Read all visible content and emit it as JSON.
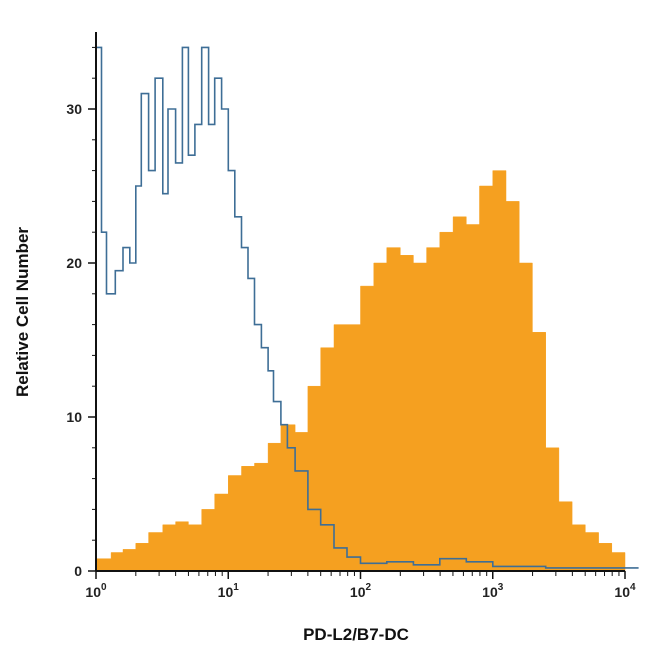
{
  "chart_data": {
    "type": "histogram",
    "title": "",
    "xlabel": "PD-L2/B7-DC",
    "ylabel": "Relative Cell Number",
    "x_scale": "log",
    "xlim": [
      1,
      10000
    ],
    "ylim": [
      0,
      35
    ],
    "x_ticks": [
      {
        "base": "10",
        "exp": "0",
        "value": 1
      },
      {
        "base": "10",
        "exp": "1",
        "value": 10
      },
      {
        "base": "10",
        "exp": "2",
        "value": 100
      },
      {
        "base": "10",
        "exp": "3",
        "value": 1000
      },
      {
        "base": "10",
        "exp": "4",
        "value": 10000
      }
    ],
    "y_ticks": [
      0,
      10,
      20,
      30
    ],
    "grid": false,
    "legend": "none",
    "series": [
      {
        "style": "filled",
        "color": "#f5a020",
        "x": [
          1.0,
          1.3,
          1.6,
          2.0,
          2.5,
          3.2,
          4.0,
          5.0,
          6.3,
          7.9,
          10,
          12.6,
          15.8,
          20,
          25,
          32,
          40,
          50,
          63,
          79,
          100,
          126,
          158,
          200,
          251,
          316,
          398,
          501,
          631,
          794,
          1000,
          1259,
          1585,
          1995,
          2512,
          3162,
          3981,
          5012,
          6310,
          7943
        ],
        "y": [
          0.8,
          1.2,
          1.4,
          1.8,
          2.5,
          3.0,
          3.2,
          3.0,
          4.0,
          5.0,
          6.2,
          6.8,
          7.0,
          8.3,
          9.5,
          9.0,
          12.0,
          14.5,
          16.0,
          16.0,
          18.5,
          20.0,
          21.0,
          20.5,
          20.0,
          21.0,
          22.0,
          23.0,
          22.5,
          25.0,
          26.0,
          24.0,
          20.0,
          15.5,
          8.0,
          4.5,
          3.0,
          2.5,
          1.8,
          1.2
        ]
      },
      {
        "style": "outline",
        "color": "#3e6e96",
        "x": [
          1.0,
          1.1,
          1.2,
          1.4,
          1.6,
          1.8,
          2.0,
          2.2,
          2.5,
          2.8,
          3.2,
          3.5,
          4.0,
          4.5,
          5.0,
          5.6,
          6.3,
          7.1,
          7.9,
          8.9,
          10,
          11.2,
          12.6,
          14.1,
          15.8,
          17.8,
          20,
          22,
          25,
          28,
          32,
          40,
          50,
          63,
          79,
          100,
          158,
          251,
          398,
          631,
          1000,
          2512,
          6310
        ],
        "y": [
          34.0,
          22.0,
          18.0,
          19.5,
          21.0,
          20.0,
          25.0,
          31.0,
          26.0,
          32.0,
          24.5,
          30.0,
          26.5,
          34.0,
          27.0,
          29.0,
          34.0,
          29.0,
          32.0,
          30.0,
          26.0,
          23.0,
          21.0,
          19.0,
          16.0,
          14.5,
          13.0,
          11.0,
          9.5,
          8.0,
          6.5,
          4.0,
          3.0,
          1.5,
          0.9,
          0.5,
          0.6,
          0.4,
          0.8,
          0.6,
          0.3,
          0.2,
          0.2
        ]
      }
    ]
  }
}
